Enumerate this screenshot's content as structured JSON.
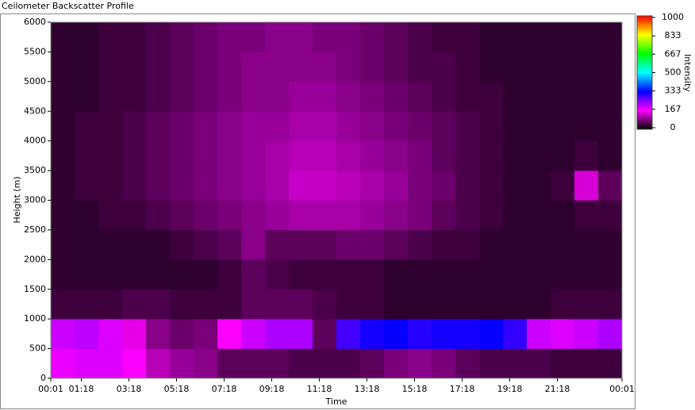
{
  "chart_data": {
    "type": "heatmap",
    "title": "Ceilometer Backscatter Profile",
    "xlabel": "Time",
    "ylabel": "Height (m)",
    "colorbar_label": "Intensity",
    "xlim": [
      0,
      24
    ],
    "xticks": [
      {
        "value": 0,
        "label": "00:01"
      },
      {
        "value": 1.283,
        "label": "01:18"
      },
      {
        "value": 3.283,
        "label": "03:18"
      },
      {
        "value": 5.283,
        "label": "05:18"
      },
      {
        "value": 7.283,
        "label": "07:18"
      },
      {
        "value": 9.283,
        "label": "09:18"
      },
      {
        "value": 11.283,
        "label": "11:18"
      },
      {
        "value": 13.283,
        "label": "13:18"
      },
      {
        "value": 15.283,
        "label": "15:18"
      },
      {
        "value": 17.283,
        "label": "17:18"
      },
      {
        "value": 19.283,
        "label": "19:18"
      },
      {
        "value": 21.283,
        "label": "21:18"
      },
      {
        "value": 24,
        "label": "00:01"
      }
    ],
    "ylim": [
      0,
      6000
    ],
    "yticks": [
      0,
      500,
      1000,
      1500,
      2000,
      2500,
      3000,
      3500,
      4000,
      4500,
      5000,
      5500,
      6000
    ],
    "xbins": [
      0,
      1,
      2,
      3,
      4,
      5,
      6,
      7,
      8,
      9,
      10,
      11,
      12,
      13,
      14,
      15,
      16,
      17,
      18,
      19,
      20,
      21,
      22,
      23,
      24
    ],
    "ybins": [
      0,
      500,
      1000,
      1500,
      2000,
      2500,
      3000,
      3500,
      4000,
      4500,
      5000,
      5500,
      6000
    ],
    "z": [
      [
        180,
        190,
        190,
        170,
        120,
        100,
        90,
        60,
        60,
        60,
        50,
        50,
        50,
        60,
        80,
        90,
        80,
        60,
        50,
        50,
        50,
        40,
        40,
        40
      ],
      [
        200,
        210,
        190,
        150,
        90,
        70,
        80,
        170,
        200,
        220,
        220,
        60,
        290,
        320,
        330,
        310,
        320,
        320,
        330,
        300,
        200,
        190,
        200,
        220
      ],
      [
        40,
        40,
        40,
        50,
        50,
        40,
        40,
        40,
        60,
        60,
        60,
        50,
        40,
        40,
        30,
        30,
        30,
        30,
        30,
        30,
        30,
        40,
        40,
        40
      ],
      [
        30,
        30,
        30,
        30,
        30,
        30,
        30,
        40,
        60,
        50,
        40,
        40,
        40,
        40,
        30,
        30,
        30,
        30,
        30,
        30,
        30,
        30,
        30,
        30
      ],
      [
        30,
        30,
        30,
        30,
        30,
        40,
        50,
        60,
        90,
        60,
        60,
        60,
        70,
        70,
        60,
        50,
        40,
        40,
        30,
        30,
        30,
        30,
        30,
        30
      ],
      [
        30,
        30,
        40,
        40,
        50,
        60,
        70,
        80,
        90,
        100,
        110,
        110,
        110,
        100,
        90,
        80,
        60,
        50,
        40,
        30,
        30,
        30,
        40,
        40
      ],
      [
        30,
        40,
        40,
        50,
        60,
        70,
        80,
        90,
        100,
        110,
        130,
        130,
        120,
        110,
        100,
        80,
        70,
        50,
        40,
        30,
        30,
        40,
        140,
        60
      ],
      [
        30,
        40,
        40,
        50,
        60,
        70,
        80,
        90,
        100,
        110,
        120,
        120,
        110,
        100,
        90,
        80,
        60,
        50,
        40,
        30,
        30,
        30,
        40,
        30
      ],
      [
        30,
        40,
        40,
        50,
        60,
        70,
        80,
        90,
        100,
        100,
        110,
        110,
        100,
        90,
        80,
        70,
        60,
        50,
        40,
        30,
        30,
        30,
        30,
        30
      ],
      [
        30,
        30,
        40,
        40,
        50,
        60,
        70,
        80,
        90,
        90,
        100,
        100,
        90,
        80,
        70,
        60,
        50,
        40,
        40,
        30,
        30,
        30,
        30,
        30
      ],
      [
        30,
        30,
        40,
        40,
        50,
        60,
        70,
        80,
        90,
        90,
        90,
        90,
        80,
        70,
        60,
        50,
        50,
        40,
        30,
        30,
        30,
        30,
        30,
        30
      ],
      [
        30,
        30,
        40,
        40,
        50,
        60,
        70,
        80,
        80,
        90,
        90,
        80,
        80,
        70,
        60,
        50,
        40,
        40,
        30,
        30,
        30,
        30,
        30,
        30
      ]
    ],
    "zlim": [
      0,
      1000
    ],
    "zticks": [
      0,
      167,
      333,
      500,
      667,
      833,
      1000
    ],
    "colorscale": [
      [
        0,
        "#000000"
      ],
      [
        167,
        "#ff00ff"
      ],
      [
        333,
        "#0000ff"
      ],
      [
        500,
        "#00ffff"
      ],
      [
        667,
        "#00ff00"
      ],
      [
        833,
        "#ffff00"
      ],
      [
        1000,
        "#ff0000"
      ]
    ]
  }
}
